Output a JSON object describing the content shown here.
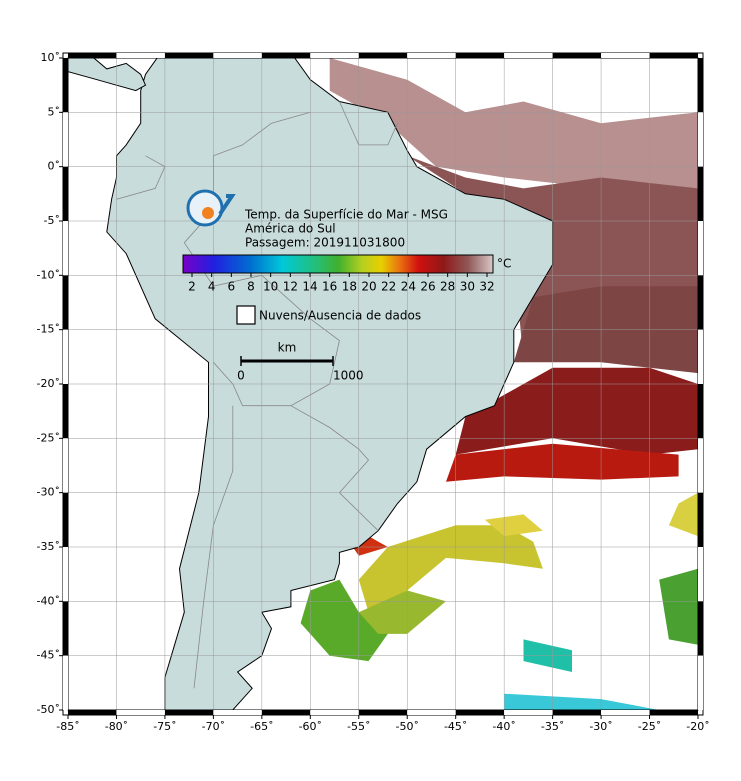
{
  "map": {
    "title_lines": [
      "Temp. da Superfície do Mar - MSG",
      "América do Sul",
      "Passagem: 201911031800"
    ],
    "colorbar": {
      "unit": "°C",
      "ticks": [
        2,
        4,
        6,
        8,
        10,
        12,
        14,
        16,
        18,
        20,
        22,
        24,
        26,
        28,
        30,
        32
      ]
    },
    "legend": "Nuvens/Ausencia de dados",
    "scale_bar": {
      "unit": "km",
      "ticks": [
        0,
        1000
      ]
    },
    "lon_ticks": [
      {
        "value": -85,
        "label": "-85˚"
      },
      {
        "value": -80,
        "label": "-80˚"
      },
      {
        "value": -75,
        "label": "-75˚"
      },
      {
        "value": -70,
        "label": "-70˚"
      },
      {
        "value": -65,
        "label": "-65˚"
      },
      {
        "value": -60,
        "label": "-60˚"
      },
      {
        "value": -55,
        "label": "-55˚"
      },
      {
        "value": -50,
        "label": "-50˚"
      },
      {
        "value": -45,
        "label": "-45˚"
      },
      {
        "value": -40,
        "label": "-40˚"
      },
      {
        "value": -35,
        "label": "-35˚"
      },
      {
        "value": -30,
        "label": "-30˚"
      },
      {
        "value": -25,
        "label": "-25˚"
      },
      {
        "value": -20,
        "label": "-20˚"
      }
    ],
    "lat_ticks": [
      {
        "value": 10,
        "label": "10˚"
      },
      {
        "value": 5,
        "label": "5˚"
      },
      {
        "value": 0,
        "label": "0˚"
      },
      {
        "value": -5,
        "label": "-5˚"
      },
      {
        "value": -10,
        "label": "-10˚"
      },
      {
        "value": -15,
        "label": "-15˚"
      },
      {
        "value": -20,
        "label": "-20˚"
      },
      {
        "value": -25,
        "label": "-25˚"
      },
      {
        "value": -30,
        "label": "-30˚"
      },
      {
        "value": -35,
        "label": "-35˚"
      },
      {
        "value": -40,
        "label": "-40˚"
      },
      {
        "value": -45,
        "label": "-45˚"
      },
      {
        "value": -50,
        "label": "-50˚"
      }
    ]
  }
}
